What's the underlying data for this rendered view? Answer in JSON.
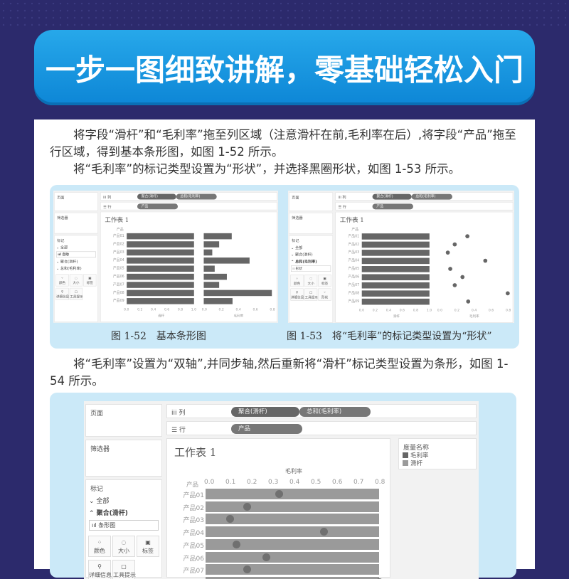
{
  "banner": {
    "title": "一步一图细致讲解，零基础轻松入门"
  },
  "paragraphs": [
    "将字段“滑杆”和“毛利率”拖至列区域（注意滑杆在前,毛利率在后）,将字段“产品”拖至行区域，得到基本条形图，如图 1-52 所示。",
    "将“毛利率”的标记类型设置为“形状”，并选择黑圈形状，如图 1-53 所示。",
    "将“毛利率”设置为“双轴”,并同步轴,然后重新将“滑杆”标记类型设置为条形，如图 1-54 所示。"
  ],
  "captions": [
    "图 1-52　基本条形图",
    "图 1-53　将“毛利率”的标记类型设置为“形状”"
  ],
  "tableau": {
    "pages": "页面",
    "filters": "筛选器",
    "marks": "标记",
    "columns_label": "iii 列",
    "rows_label": "☰ 行",
    "col_pills": [
      "聚合(滑杆)",
      "总和(毛利率)"
    ],
    "row_pills": [
      "产品"
    ],
    "sheet_title": "工作表 1",
    "row_header": "产品",
    "products": [
      "产品01",
      "产品02",
      "产品03",
      "产品04",
      "产品05",
      "产品06",
      "产品07",
      "产品08",
      "产品09"
    ],
    "slider": [
      1,
      1,
      1,
      1,
      1,
      1,
      1,
      1,
      1
    ],
    "margin": [
      0.33,
      0.18,
      0.1,
      0.54,
      0.13,
      0.27,
      0.18,
      0.8,
      0.34
    ],
    "slider_axis_title": "滑杆",
    "margin_axis_title": "毛利率",
    "slider_ticks": [
      "0.0",
      "0.2",
      "0.4",
      "0.6",
      "0.8",
      "1.0"
    ],
    "margin_ticks_small": [
      "0.0",
      "0.2",
      "0.4",
      "0.6",
      "0.8"
    ],
    "margin_ticks_big": [
      "0.0",
      "0.1",
      "0.2",
      "0.3",
      "0.4",
      "0.5",
      "0.6",
      "0.7",
      "0.8"
    ],
    "mark_buttons": [
      "颜色",
      "大小",
      "标签",
      "详细信息",
      "工具提示",
      "形状"
    ],
    "legend_title": "度量名称",
    "legend_items": [
      "毛利率",
      "滑杆"
    ],
    "colors": {
      "bar_dark": "#666666",
      "bar_light": "#9a9a9a",
      "dot": "#707070"
    }
  },
  "figures": [
    {
      "marks_items": [
        "⌄ 全部",
        "ııl 自动",
        "⌄ 聚合(滑杆)",
        "⌄ 总和(毛利率)"
      ],
      "bold": [
        1
      ],
      "mode": "bars"
    },
    {
      "marks_items": [
        "⌄ 全部",
        "⌄ 聚合(滑杆)",
        "⌃ 总和(毛利率)",
        "⁝⁝ 形状"
      ],
      "bold": [
        2
      ],
      "mode": "shapes"
    },
    {
      "marks_items": [
        "⌄ 全部",
        "⌃ 聚合(滑杆)",
        "ııl 条形图"
      ],
      "bold": [
        1
      ],
      "mode": "dual"
    }
  ]
}
